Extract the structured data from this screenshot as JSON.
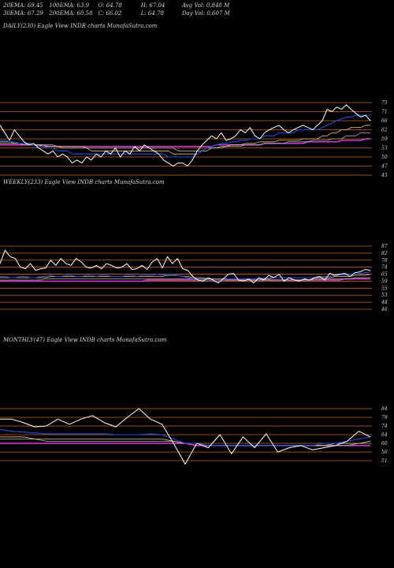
{
  "header": {
    "row1": [
      "20EMA: 69.45",
      "100EMA: 63.9",
      "O: 64.78",
      "H: 67.04",
      "Avg Vol: 0.848  M"
    ],
    "row2": [
      "30EMA: 67.29",
      "200EMA: 60.58",
      "C: 66.02",
      "L: 64.78",
      "Day Vol: 0.607 M"
    ]
  },
  "colors": {
    "background": "#000000",
    "grid": "#c8641e",
    "price": "#ffffff",
    "ema_short": "#1e50e6",
    "ema_long": "#e640e6",
    "ema_mid1": "#e6c878",
    "ema_mid2": "#b4b4b4"
  },
  "chart_data": [
    {
      "type": "line",
      "title": "DAILY(230) Eagle  View  INDB charts MunafaSutra.com",
      "y_ticks": [
        "75",
        "71",
        "66",
        "62",
        "59",
        "53",
        "50",
        "47",
        "45"
      ],
      "series": [
        {
          "values": [
            64,
            61,
            58,
            62,
            60,
            57,
            55,
            56,
            53,
            52,
            51,
            52,
            50,
            51,
            50,
            48,
            49,
            48,
            50,
            49,
            51,
            50,
            52,
            51,
            53,
            50,
            52,
            51,
            54,
            52,
            55,
            53,
            52,
            51,
            49,
            48,
            47,
            48,
            48,
            47,
            49,
            52,
            55,
            58,
            60,
            59,
            61,
            58,
            59,
            60,
            62,
            61,
            63,
            60,
            59,
            61,
            62,
            63,
            64,
            62,
            61,
            62,
            63,
            64,
            63,
            62,
            64,
            66,
            72,
            71,
            73,
            72,
            74,
            72,
            70,
            68,
            69,
            66
          ]
        },
        {
          "values": [
            58,
            58,
            57,
            57,
            56,
            56,
            55,
            55,
            54,
            54,
            53,
            53,
            52,
            52,
            52,
            51,
            51,
            51,
            51,
            51,
            51,
            51,
            51,
            51,
            51,
            51,
            51,
            51,
            51,
            51,
            51,
            51,
            51,
            51,
            51,
            50,
            50,
            50,
            50,
            50,
            50,
            51,
            52,
            53,
            54,
            55,
            56,
            56,
            57,
            57,
            58,
            58,
            59,
            59,
            59,
            60,
            60,
            60,
            61,
            61,
            61,
            61,
            62,
            62,
            62,
            62,
            62,
            63,
            64,
            65,
            66,
            67,
            68,
            68,
            69,
            69,
            69,
            69
          ]
        },
        {
          "values": [
            56,
            56,
            56,
            56,
            56,
            55,
            55,
            55,
            55,
            54,
            54,
            54,
            54,
            53,
            53,
            53,
            53,
            53,
            53,
            52,
            52,
            52,
            52,
            52,
            52,
            52,
            52,
            52,
            52,
            52,
            52,
            52,
            52,
            52,
            52,
            52,
            51,
            51,
            51,
            51,
            51,
            51,
            52,
            52,
            53,
            53,
            54,
            54,
            55,
            55,
            55,
            56,
            56,
            56,
            57,
            57,
            57,
            57,
            58,
            58,
            58,
            58,
            58,
            59,
            59,
            59,
            59,
            60,
            60,
            61,
            61,
            62,
            62,
            63,
            63,
            63,
            64,
            64
          ]
        },
        {
          "values": [
            57,
            57,
            57,
            56,
            56,
            56,
            56,
            55,
            55,
            55,
            55,
            55,
            54,
            54,
            54,
            54,
            54,
            54,
            53,
            53,
            53,
            53,
            53,
            53,
            53,
            53,
            53,
            53,
            53,
            53,
            53,
            53,
            53,
            53,
            53,
            53,
            53,
            52,
            52,
            52,
            52,
            52,
            52,
            53,
            53,
            53,
            53,
            54,
            54,
            54,
            54,
            55,
            55,
            55,
            55,
            56,
            56,
            56,
            56,
            56,
            57,
            57,
            57,
            57,
            57,
            58,
            58,
            58,
            58,
            59,
            59,
            59,
            60,
            60,
            60,
            61,
            61,
            61
          ]
        },
        {
          "values": [
            55,
            55,
            55,
            55,
            55,
            55,
            55,
            55,
            55,
            55,
            54,
            54,
            54,
            54,
            54,
            54,
            54,
            54,
            54,
            54,
            54,
            54,
            54,
            54,
            54,
            54,
            54,
            54,
            54,
            54,
            54,
            54,
            54,
            54,
            54,
            54,
            54,
            54,
            54,
            54,
            54,
            54,
            54,
            54,
            54,
            55,
            55,
            55,
            55,
            55,
            55,
            55,
            55,
            55,
            55,
            56,
            56,
            56,
            56,
            56,
            56,
            56,
            56,
            56,
            57,
            57,
            57,
            57,
            57,
            57,
            57,
            58,
            58,
            58,
            58,
            58,
            59,
            59
          ]
        }
      ]
    },
    {
      "type": "line",
      "title": "WEEKLY(233) Eagle  View  INDB charts MunafaSutra.com",
      "y_ticks": [
        "87",
        "82",
        "78",
        "74",
        "65",
        "59",
        "55",
        "53",
        "48",
        "46"
      ],
      "series": [
        {
          "values": [
            76,
            84,
            80,
            79,
            74,
            72,
            76,
            70,
            72,
            73,
            78,
            75,
            79,
            76,
            75,
            79,
            77,
            74,
            73,
            75,
            72,
            76,
            75,
            73,
            74,
            76,
            71,
            72,
            75,
            71,
            77,
            79,
            73,
            80,
            76,
            79,
            72,
            70,
            63,
            60,
            59,
            62,
            60,
            58,
            61,
            65,
            66,
            60,
            59,
            61,
            58,
            62,
            60,
            64,
            62,
            65,
            59,
            62,
            60,
            59,
            61,
            60,
            62,
            63,
            60,
            66,
            64,
            65,
            66,
            63,
            67,
            68,
            71,
            70
          ]
        },
        {
          "values": [
            63,
            63,
            62,
            62,
            63,
            63,
            62,
            62,
            63,
            63,
            64,
            63,
            63,
            64,
            64,
            63,
            63,
            64,
            64,
            63,
            64,
            64,
            63,
            63,
            63,
            64,
            64,
            63,
            64,
            64,
            64,
            65,
            64,
            65,
            65,
            64,
            63,
            62,
            61,
            60,
            60,
            60,
            60,
            60,
            60,
            61,
            61,
            61,
            61,
            61,
            61,
            61,
            62,
            62,
            62,
            62,
            62,
            62,
            62,
            62,
            62,
            62,
            62,
            63,
            63,
            63,
            64,
            64,
            64,
            65,
            65,
            66,
            67,
            68
          ]
        },
        {
          "values": [
            62,
            62,
            62,
            62,
            62,
            62,
            62,
            62,
            62,
            62,
            63,
            63,
            63,
            63,
            63,
            63,
            63,
            63,
            63,
            63,
            63,
            63,
            63,
            63,
            63,
            63,
            63,
            63,
            63,
            63,
            63,
            63,
            63,
            64,
            64,
            64,
            63,
            63,
            62,
            62,
            62,
            61,
            61,
            61,
            61,
            61,
            61,
            61,
            61,
            61,
            61,
            61,
            61,
            61,
            62,
            62,
            62,
            62,
            62,
            62,
            62,
            62,
            62,
            62,
            62,
            62,
            63,
            63,
            63,
            63,
            64,
            64,
            64,
            65
          ]
        },
        {
          "values": [
            60,
            60,
            60,
            60,
            60,
            60,
            60,
            60,
            60,
            61,
            61,
            61,
            61,
            61,
            61,
            61,
            61,
            61,
            61,
            61,
            61,
            61,
            61,
            61,
            61,
            61,
            61,
            61,
            61,
            61,
            61,
            61,
            61,
            61,
            61,
            61,
            61,
            61,
            61,
            61,
            61,
            60,
            60,
            60,
            60,
            60,
            60,
            60,
            60,
            60,
            60,
            60,
            60,
            60,
            60,
            60,
            60,
            60,
            60,
            60,
            60,
            60,
            61,
            61,
            61,
            61,
            61,
            61,
            61,
            61,
            62,
            62,
            62,
            62
          ]
        },
        {
          "values": [
            59,
            59,
            59,
            59,
            59,
            59,
            59,
            59,
            59,
            59,
            59,
            59,
            59,
            59,
            59,
            59,
            59,
            59,
            59,
            59,
            59,
            59,
            59,
            59,
            59,
            59,
            59,
            59,
            59,
            60,
            60,
            60,
            60,
            60,
            60,
            60,
            60,
            60,
            60,
            60,
            60,
            60,
            60,
            60,
            60,
            60,
            60,
            60,
            60,
            60,
            60,
            60,
            60,
            60,
            60,
            60,
            60,
            60,
            60,
            60,
            60,
            60,
            60,
            60,
            60,
            60,
            60,
            60,
            61,
            61,
            61,
            61,
            61,
            61
          ]
        }
      ]
    },
    {
      "type": "line",
      "title": "MONTHLY(47) Eagle  View  INDB charts MunafaSutra.com",
      "y_ticks": [
        "84",
        "79",
        "74",
        "64",
        "60",
        "56",
        "51"
      ],
      "series": [
        {
          "values": [
            78,
            78,
            76,
            73,
            74,
            78,
            75,
            78,
            80,
            76,
            73,
            79,
            84,
            78,
            75,
            60,
            49,
            60,
            58,
            64,
            55,
            63,
            58,
            65,
            56,
            58,
            59,
            57,
            58,
            59,
            61,
            68,
            63
          ]
        },
        {
          "values": [
            70,
            68,
            67,
            66,
            65,
            65,
            65,
            65,
            65,
            65,
            64,
            64,
            64,
            65,
            64,
            62,
            60,
            60,
            59,
            59,
            59,
            59,
            59,
            59,
            59,
            59,
            59,
            59,
            60,
            60,
            61,
            62,
            63
          ]
        },
        {
          "values": [
            63,
            63,
            63,
            62,
            62,
            62,
            62,
            62,
            62,
            62,
            62,
            62,
            62,
            62,
            62,
            61,
            60,
            60,
            59,
            59,
            59,
            59,
            59,
            59,
            59,
            59,
            59,
            59,
            59,
            60,
            60,
            60,
            61
          ]
        },
        {
          "values": [
            62,
            62,
            62,
            62,
            61,
            61,
            61,
            61,
            61,
            61,
            61,
            61,
            61,
            61,
            61,
            61,
            60,
            60,
            59,
            59,
            59,
            59,
            59,
            59,
            59,
            59,
            59,
            59,
            59,
            59,
            59,
            60,
            60
          ]
        },
        {
          "values": [
            60,
            60,
            60,
            60,
            60,
            60,
            60,
            60,
            60,
            60,
            60,
            60,
            60,
            60,
            60,
            60,
            60,
            59,
            59,
            59,
            59,
            59,
            59,
            59,
            59,
            59,
            59,
            59,
            59,
            59,
            59,
            59,
            59
          ]
        }
      ]
    }
  ]
}
